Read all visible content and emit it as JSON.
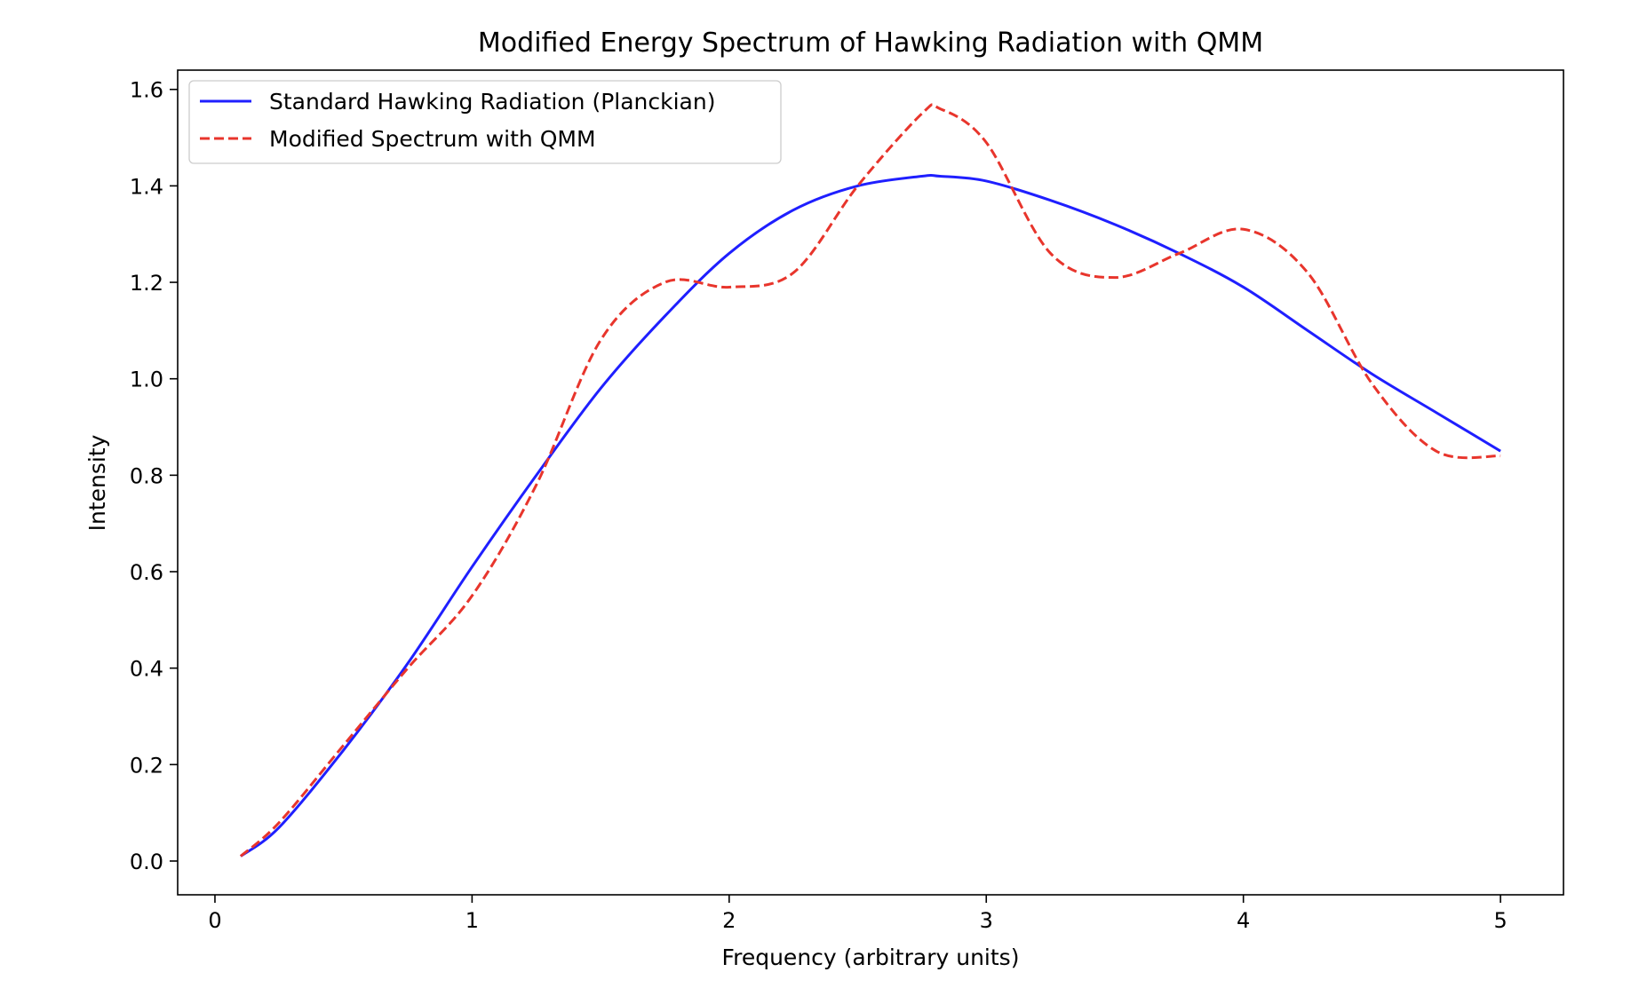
{
  "chart_data": {
    "type": "line",
    "title": "Modified Energy Spectrum of Hawking Radiation with QMM",
    "xlabel": "Frequency (arbitrary units)",
    "ylabel": "Intensity",
    "xlim": [
      -0.145,
      5.245
    ],
    "ylim": [
      -0.07,
      1.64
    ],
    "xticks": [
      0,
      1,
      2,
      3,
      4,
      5
    ],
    "xtick_labels": [
      "0",
      "1",
      "2",
      "3",
      "4",
      "5"
    ],
    "yticks": [
      0.0,
      0.2,
      0.4,
      0.6,
      0.8,
      1.0,
      1.2,
      1.4,
      1.6
    ],
    "ytick_labels": [
      "0.0",
      "0.2",
      "0.4",
      "0.6",
      "0.8",
      "1.0",
      "1.2",
      "1.4",
      "1.6"
    ],
    "grid": false,
    "legend_position": "top-left",
    "x": [
      0.1,
      0.25,
      0.5,
      0.75,
      1.0,
      1.25,
      1.5,
      1.75,
      2.0,
      2.25,
      2.5,
      2.75,
      2.82,
      3.0,
      3.25,
      3.5,
      3.75,
      4.0,
      4.25,
      4.5,
      4.75,
      5.0
    ],
    "series": [
      {
        "name": "Standard Hawking Radiation (Planckian)",
        "color": "#1f1fff",
        "style": "solid",
        "values": [
          0.01,
          0.07,
          0.23,
          0.41,
          0.61,
          0.8,
          0.98,
          1.13,
          1.26,
          1.35,
          1.4,
          1.42,
          1.42,
          1.41,
          1.37,
          1.32,
          1.26,
          1.19,
          1.1,
          1.01,
          0.93,
          0.85
        ]
      },
      {
        "name": "Modified Spectrum with QMM",
        "color": "#e8352c",
        "style": "dashed",
        "values": [
          0.01,
          0.08,
          0.24,
          0.4,
          0.55,
          0.78,
          1.08,
          1.2,
          1.19,
          1.22,
          1.4,
          1.55,
          1.56,
          1.49,
          1.26,
          1.21,
          1.26,
          1.31,
          1.22,
          0.99,
          0.85,
          0.84
        ]
      }
    ]
  }
}
